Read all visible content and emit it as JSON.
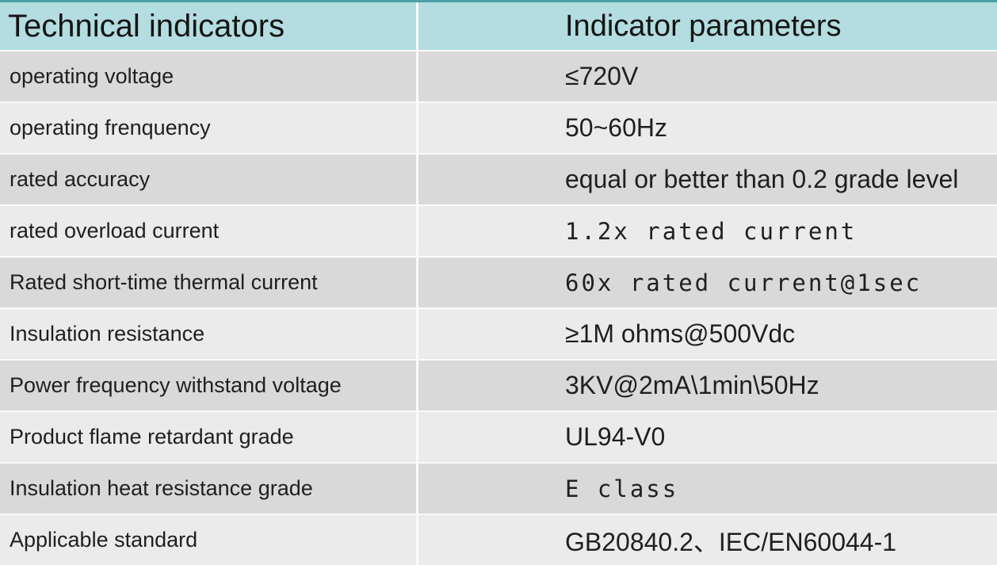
{
  "table": {
    "header": {
      "col1": "Technical indicators",
      "col2": "Indicator parameters"
    },
    "rows": [
      {
        "label": "operating voltage",
        "value": "≤720V"
      },
      {
        "label": "operating frenquency",
        "value": "50~60Hz"
      },
      {
        "label": "rated accuracy",
        "value": "equal or better than 0.2 grade level"
      },
      {
        "label": "rated overload current",
        "value": "1.2x rated current"
      },
      {
        "label": "Rated short-time thermal current",
        "value": "60x rated current@1sec"
      },
      {
        "label": "Insulation resistance",
        "value": "≥1M ohms@500Vdc"
      },
      {
        "label": "Power frequency withstand voltage",
        "value": "3KV@2mA\\1min\\50Hz"
      },
      {
        "label": "Product flame retardant grade",
        "value": "UL94-V0"
      },
      {
        "label": "Insulation heat resistance grade",
        "value": "E class"
      },
      {
        "label": "Applicable standard",
        "value": "GB20840.2、IEC/EN60044-1"
      }
    ],
    "colors": {
      "accent_top_bar": "#4aa0a5",
      "header_bg": "#b3dde0",
      "row_dark": "#d9d9d9",
      "row_light": "#ebebeb",
      "divider": "#fafafa",
      "text": "#1c1c1c"
    }
  }
}
